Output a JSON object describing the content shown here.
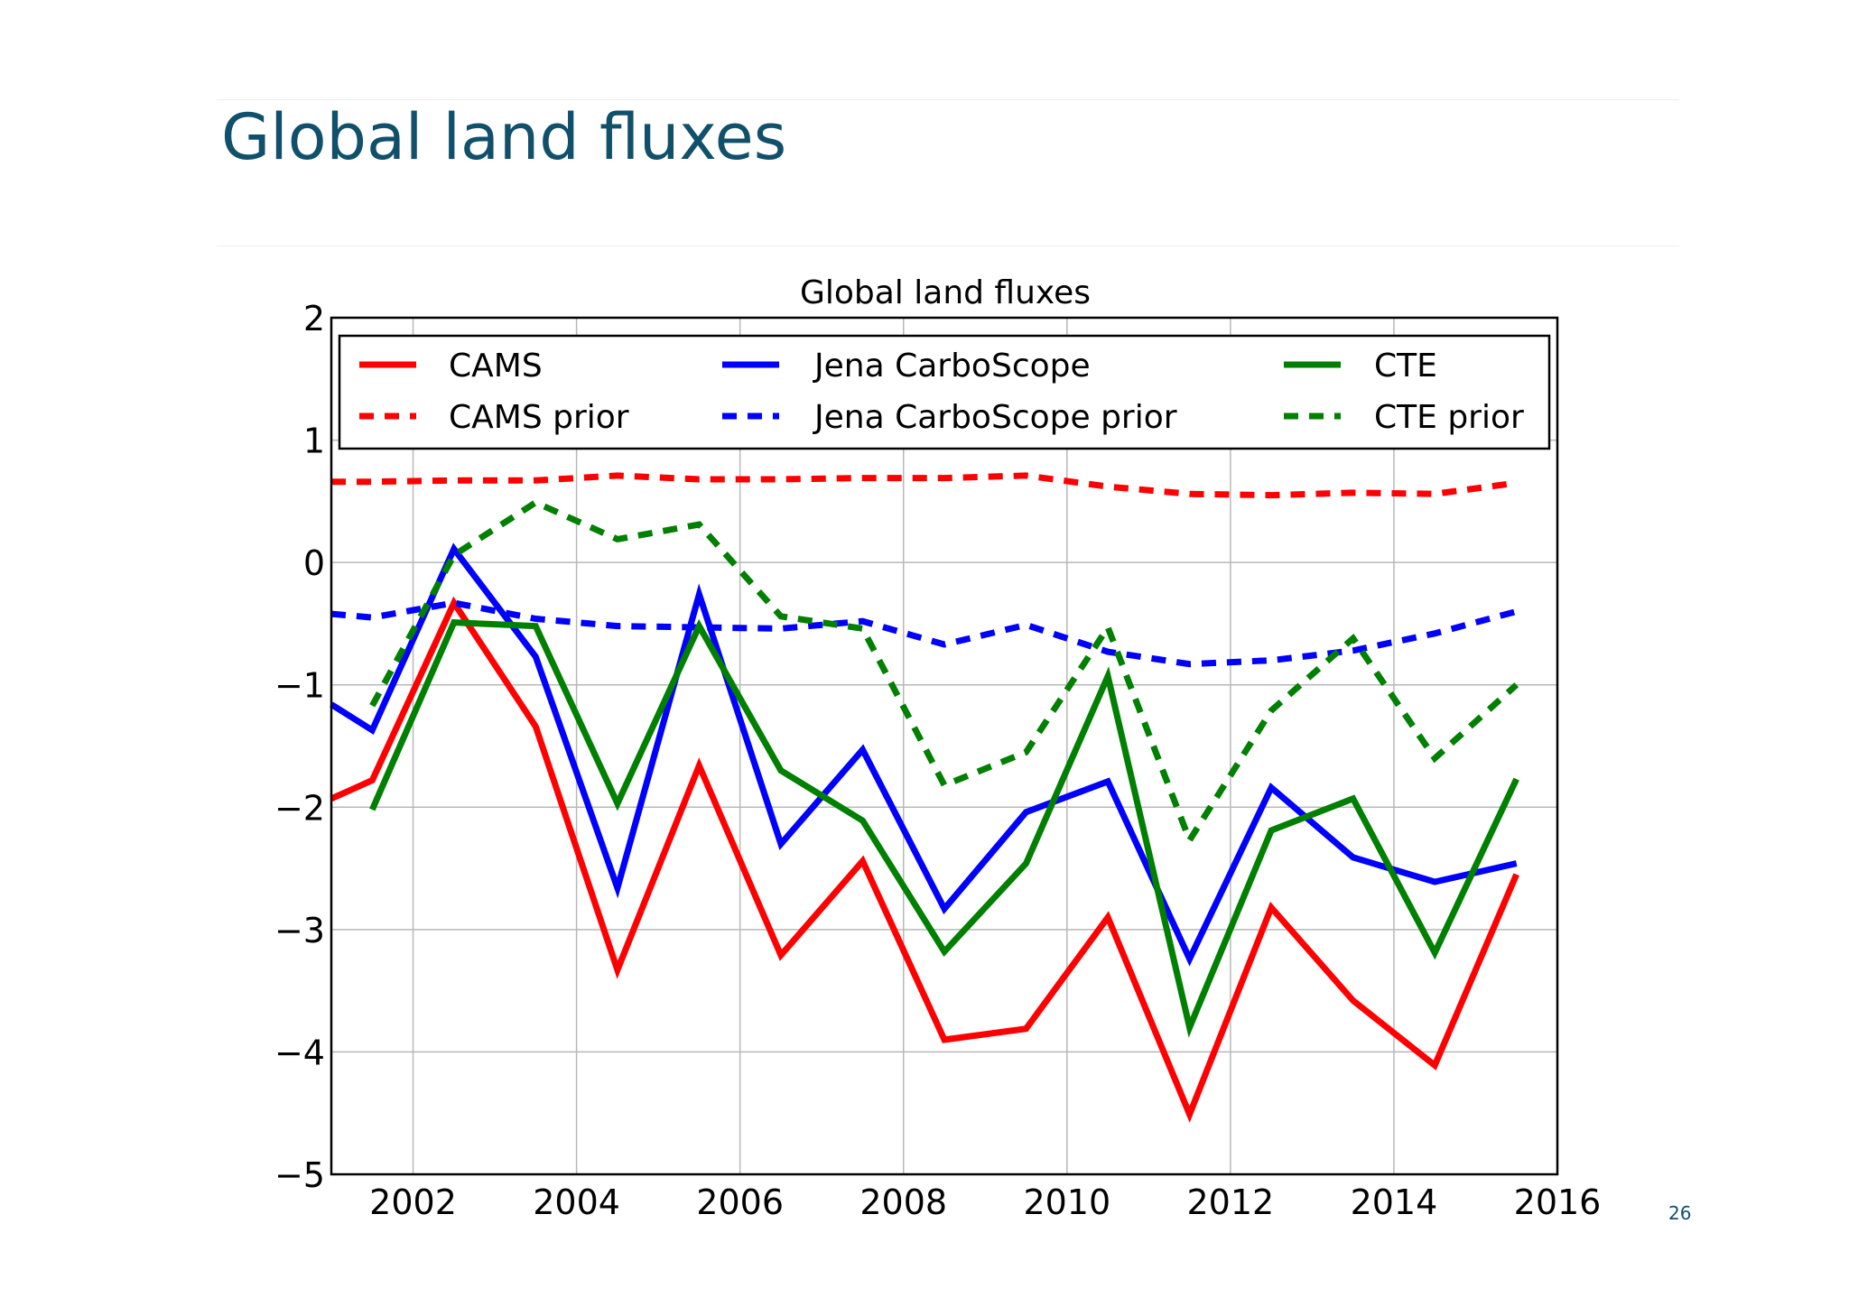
{
  "slide": {
    "title": "Global land fluxes",
    "page_number": "26"
  },
  "chart_data": {
    "type": "line",
    "title": "Global land fluxes",
    "xlabel": "",
    "ylabel": "",
    "xlim": [
      2001,
      2016
    ],
    "ylim": [
      -5,
      2
    ],
    "xticks": [
      2002,
      2004,
      2006,
      2008,
      2010,
      2012,
      2014,
      2016
    ],
    "yticks": [
      2,
      1,
      0,
      -1,
      -2,
      -3,
      -4,
      -5
    ],
    "ytick_labels": [
      "2",
      "1",
      "0",
      "−1",
      "−2",
      "−3",
      "−4",
      "−5"
    ],
    "grid": true,
    "legend": {
      "placement": "top",
      "columns": 3
    },
    "series": [
      {
        "name": "CAMS",
        "color": "#ff0000",
        "style": "solid",
        "x": [
          2001,
          2001.5,
          2002.5,
          2003.5,
          2004.5,
          2005.5,
          2006.5,
          2007.5,
          2008.5,
          2009.5,
          2010.5,
          2011.5,
          2012.5,
          2013.5,
          2014.5,
          2015.5
        ],
        "y": [
          -1.93,
          -1.78,
          -0.33,
          -1.34,
          -3.33,
          -1.66,
          -3.21,
          -2.44,
          -3.9,
          -3.81,
          -2.9,
          -4.51,
          -2.82,
          -3.58,
          -4.11,
          -2.55
        ]
      },
      {
        "name": "CAMS prior",
        "color": "#ff0000",
        "style": "dashed",
        "x": [
          2001,
          2001.5,
          2002.5,
          2003.5,
          2004.5,
          2005.5,
          2006.5,
          2007.5,
          2008.5,
          2009.5,
          2010.5,
          2011.5,
          2012.5,
          2013.5,
          2014.5,
          2015.5
        ],
        "y": [
          0.66,
          0.66,
          0.67,
          0.67,
          0.71,
          0.68,
          0.68,
          0.69,
          0.69,
          0.71,
          0.62,
          0.56,
          0.55,
          0.57,
          0.56,
          0.65
        ]
      },
      {
        "name": "Jena CarboScope",
        "color": "#0000ff",
        "style": "solid",
        "x": [
          2001,
          2001.5,
          2002.5,
          2003.5,
          2004.5,
          2005.5,
          2006.5,
          2007.5,
          2008.5,
          2009.5,
          2010.5,
          2011.5,
          2012.5,
          2013.5,
          2014.5,
          2015.5
        ],
        "y": [
          -1.16,
          -1.37,
          0.11,
          -0.77,
          -2.66,
          -0.26,
          -2.3,
          -1.53,
          -2.83,
          -2.04,
          -1.79,
          -3.24,
          -1.84,
          -2.41,
          -2.61,
          -2.46
        ]
      },
      {
        "name": "Jena CarboScope prior",
        "color": "#0000ff",
        "style": "dashed",
        "x": [
          2001,
          2001.5,
          2002.5,
          2003.5,
          2004.5,
          2005.5,
          2006.5,
          2007.5,
          2008.5,
          2009.5,
          2010.5,
          2011.5,
          2012.5,
          2013.5,
          2014.5,
          2015.5
        ],
        "y": [
          -0.42,
          -0.45,
          -0.33,
          -0.46,
          -0.52,
          -0.53,
          -0.54,
          -0.48,
          -0.67,
          -0.51,
          -0.73,
          -0.83,
          -0.8,
          -0.72,
          -0.58,
          -0.4
        ]
      },
      {
        "name": "CTE",
        "color": "#008000",
        "style": "solid",
        "x": [
          2001.5,
          2002.5,
          2003.5,
          2004.5,
          2005.5,
          2006.5,
          2007.5,
          2008.5,
          2009.5,
          2010.5,
          2011.5,
          2012.5,
          2013.5,
          2014.5,
          2015.5
        ],
        "y": [
          -2.02,
          -0.49,
          -0.52,
          -1.97,
          -0.52,
          -1.7,
          -2.11,
          -3.18,
          -2.46,
          -0.93,
          -3.8,
          -2.19,
          -1.93,
          -3.19,
          -1.77
        ]
      },
      {
        "name": "CTE prior",
        "color": "#008000",
        "style": "dashed",
        "x": [
          2001.5,
          2002.5,
          2003.5,
          2004.5,
          2005.5,
          2006.5,
          2007.5,
          2008.5,
          2009.5,
          2010.5,
          2011.5,
          2012.5,
          2013.5,
          2014.5,
          2015.5
        ],
        "y": [
          -1.17,
          0.06,
          0.49,
          0.19,
          0.31,
          -0.44,
          -0.54,
          -1.82,
          -1.55,
          -0.53,
          -2.27,
          -1.21,
          -0.62,
          -1.6,
          -1.0
        ]
      }
    ]
  }
}
